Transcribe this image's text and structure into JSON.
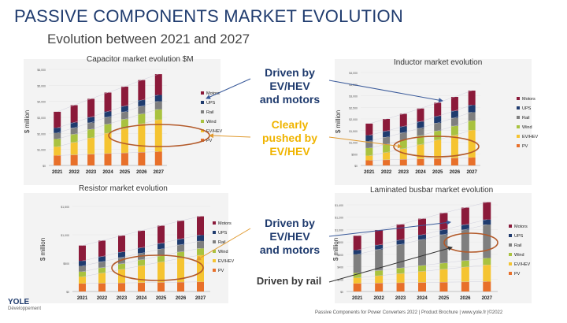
{
  "header": {
    "title": "PASSIVE COMPONENTS MARKET EVOLUTION",
    "subtitle": "Evolution between 2021 and 2027"
  },
  "callouts": {
    "top": [
      "Driven by",
      "EV/HEV",
      "and motors"
    ],
    "middle": [
      "Clearly",
      "pushed by",
      "EV/HEV"
    ],
    "bottom": [
      "Driven by",
      "EV/HEV",
      "and motors"
    ],
    "rail": "Driven by rail"
  },
  "footer": "Passive Components for Power Converters 2022 | Product Brochure | www.yole.fr |©2022",
  "logo": {
    "name": "YOLE",
    "sub": "Développement"
  },
  "colors": {
    "Motors": "#8b1a3a",
    "UPS": "#1f3b6e",
    "Rail": "#7f7f7f",
    "Wind": "#a9c23f",
    "EV/HEV": "#f5c431",
    "PV": "#e8702a"
  },
  "chart_data": [
    {
      "type": "bar",
      "stacked": true,
      "title": "Capacitor market evolution $M",
      "ylabel": "$ million",
      "categories": [
        "2021",
        "2022",
        "2023",
        "2024",
        "2025",
        "2026",
        "2027"
      ],
      "ylim": [
        0,
        6000
      ],
      "yticks": [
        "$0",
        "$1,000",
        "$2,000",
        "$3,000",
        "$4,000",
        "$5,000",
        "$6,000"
      ],
      "series": [
        {
          "name": "PV",
          "values": [
            620,
            660,
            700,
            740,
            780,
            820,
            860
          ]
        },
        {
          "name": "EV/HEV",
          "values": [
            550,
            780,
            1020,
            1280,
            1520,
            1780,
            2000
          ]
        },
        {
          "name": "Wind",
          "values": [
            480,
            510,
            540,
            560,
            590,
            620,
            640
          ]
        },
        {
          "name": "Rail",
          "values": [
            380,
            400,
            420,
            440,
            460,
            480,
            500
          ]
        },
        {
          "name": "UPS",
          "values": [
            320,
            330,
            340,
            350,
            360,
            380,
            400
          ]
        },
        {
          "name": "Motors",
          "values": [
            1000,
            1080,
            1140,
            1180,
            1210,
            1250,
            1300
          ]
        }
      ]
    },
    {
      "type": "bar",
      "stacked": true,
      "title": "Inductor market evolution",
      "ylabel": "$ million",
      "categories": [
        "2021",
        "2022",
        "2023",
        "2024",
        "2025",
        "2026",
        "2027"
      ],
      "ylim": [
        0,
        4000
      ],
      "yticks": [
        "$0",
        "$500",
        "$1,000",
        "$1,500",
        "$2,000",
        "$2,500",
        "$3,000",
        "$3,500",
        "$4,000"
      ],
      "series": [
        {
          "name": "PV",
          "values": [
            220,
            240,
            260,
            280,
            300,
            320,
            340
          ]
        },
        {
          "name": "EV/HEV",
          "values": [
            200,
            320,
            460,
            620,
            800,
            980,
            1180
          ]
        },
        {
          "name": "Wind",
          "values": [
            330,
            350,
            370,
            380,
            390,
            400,
            410
          ]
        },
        {
          "name": "Rail",
          "values": [
            300,
            310,
            320,
            330,
            340,
            350,
            360
          ]
        },
        {
          "name": "UPS",
          "values": [
            250,
            260,
            270,
            280,
            290,
            300,
            310
          ]
        },
        {
          "name": "Motors",
          "values": [
            500,
            520,
            540,
            560,
            580,
            600,
            620
          ]
        }
      ]
    },
    {
      "type": "bar",
      "stacked": true,
      "title": "Resistor market evolution",
      "ylabel": "$ million",
      "categories": [
        "2021",
        "2022",
        "2023",
        "2024",
        "2025",
        "2026",
        "2027"
      ],
      "ylim": [
        0,
        1500
      ],
      "yticks": [
        "$0",
        "$500",
        "$1,000",
        "$1,500"
      ],
      "series": [
        {
          "name": "PV",
          "values": [
            140,
            145,
            150,
            155,
            160,
            165,
            170
          ]
        },
        {
          "name": "EV/HEV",
          "values": [
            120,
            180,
            240,
            300,
            360,
            420,
            470
          ]
        },
        {
          "name": "Wind",
          "values": [
            90,
            95,
            100,
            105,
            110,
            115,
            120
          ]
        },
        {
          "name": "Rail",
          "values": [
            100,
            105,
            110,
            115,
            120,
            125,
            130
          ]
        },
        {
          "name": "UPS",
          "values": [
            90,
            92,
            95,
            97,
            100,
            102,
            105
          ]
        },
        {
          "name": "Motors",
          "values": [
            270,
            280,
            290,
            300,
            310,
            320,
            330
          ]
        }
      ]
    },
    {
      "type": "bar",
      "stacked": true,
      "title": "Laminated busbar market evolution",
      "ylabel": "$ million",
      "categories": [
        "2021",
        "2022",
        "2023",
        "2024",
        "2025",
        "2026",
        "2027"
      ],
      "ylim": [
        0,
        1400
      ],
      "yticks": [
        "$0",
        "$200",
        "$400",
        "$600",
        "$800",
        "$1,000",
        "$1,200",
        "$1,400"
      ],
      "series": [
        {
          "name": "PV",
          "values": [
            130,
            135,
            140,
            145,
            150,
            155,
            160
          ]
        },
        {
          "name": "EV/HEV",
          "values": [
            90,
            120,
            150,
            180,
            210,
            240,
            270
          ]
        },
        {
          "name": "Wind",
          "values": [
            80,
            85,
            90,
            95,
            100,
            105,
            110
          ]
        },
        {
          "name": "Rail",
          "values": [
            300,
            340,
            380,
            420,
            460,
            500,
            540
          ]
        },
        {
          "name": "UPS",
          "values": [
            70,
            72,
            74,
            76,
            78,
            80,
            82
          ]
        },
        {
          "name": "Motors",
          "values": [
            230,
            240,
            250,
            260,
            270,
            275,
            280
          ]
        }
      ]
    }
  ]
}
